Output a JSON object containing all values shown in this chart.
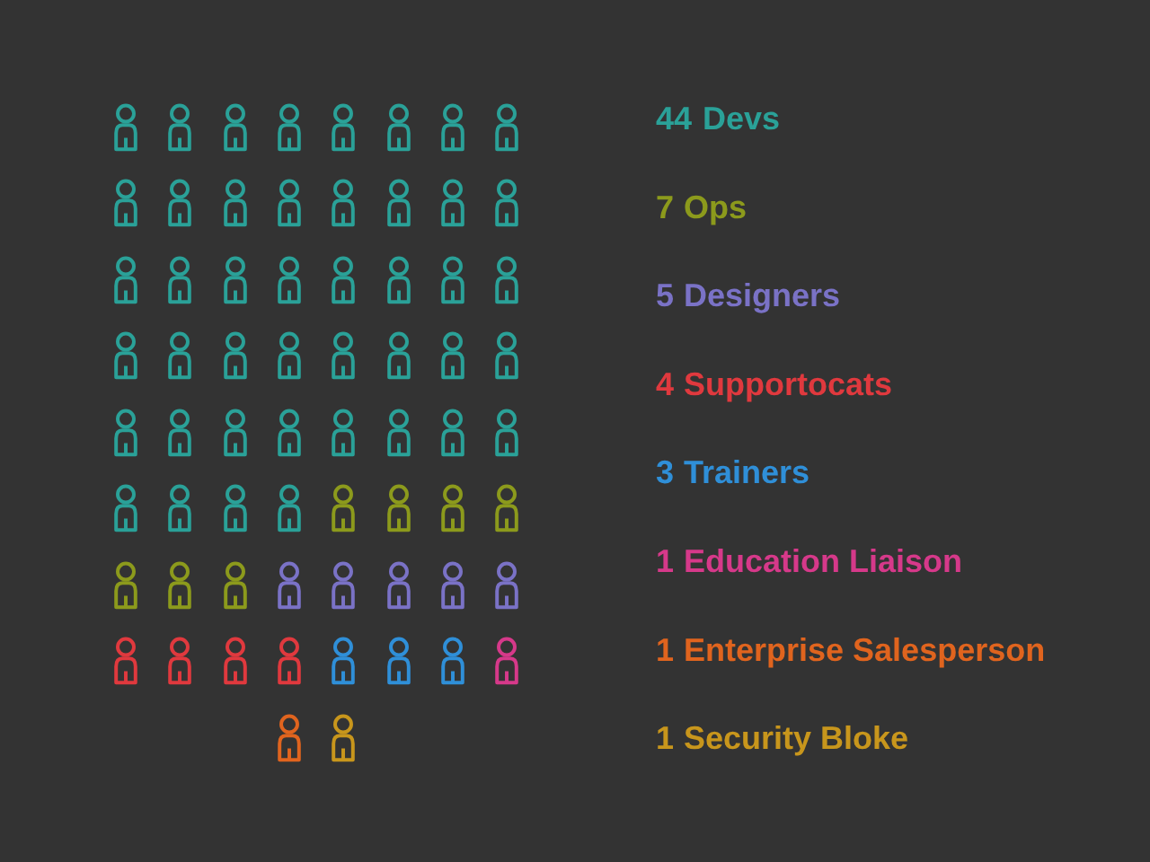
{
  "chart_data": {
    "type": "other",
    "categories": [
      "Devs",
      "Ops",
      "Designers",
      "Supportocats",
      "Trainers",
      "Education Liaison",
      "Enterprise Salesperson",
      "Security Bloke"
    ],
    "values": [
      44,
      7,
      5,
      4,
      3,
      1,
      1,
      1
    ],
    "colors": [
      "#2aa198",
      "#8c9a1c",
      "#7a72c6",
      "#e0393e",
      "#2f8fd8",
      "#d6398a",
      "#e0641e",
      "#c8961c"
    ],
    "data_labels": true
  }
}
